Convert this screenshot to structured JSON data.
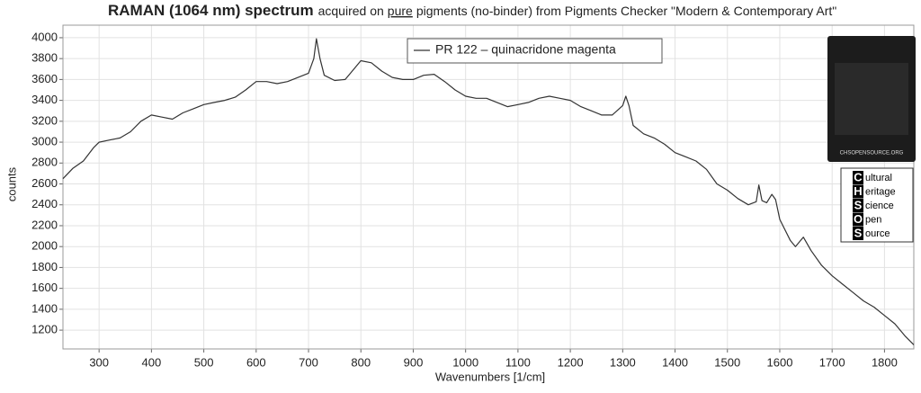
{
  "chart_data": {
    "type": "line",
    "title": "RAMAN (1064 nm) spectrum",
    "subtitle": [
      "acquired on",
      "pure",
      "pigments (no-binder) from Pigments Checker \"Modern & Contemporary Art\""
    ],
    "x_label": "Wavenumbers [1/cm]",
    "y_label": "counts",
    "xlim": [
      231,
      1856
    ],
    "ylim": [
      1020,
      4120
    ],
    "xticks": [
      300,
      400,
      500,
      600,
      700,
      800,
      900,
      1000,
      1100,
      1200,
      1300,
      1400,
      1500,
      1600,
      1700,
      1800
    ],
    "yticks": [
      1200,
      1400,
      1600,
      1800,
      2000,
      2200,
      2400,
      2600,
      2800,
      3000,
      3200,
      3400,
      3600,
      3800,
      4000
    ],
    "grid": true,
    "legend": "top",
    "x": [
      231,
      250,
      270,
      290,
      300,
      320,
      340,
      360,
      380,
      400,
      420,
      440,
      460,
      480,
      500,
      520,
      540,
      560,
      580,
      600,
      620,
      640,
      660,
      680,
      700,
      710,
      715,
      722,
      730,
      750,
      770,
      790,
      800,
      820,
      840,
      860,
      880,
      900,
      920,
      940,
      960,
      980,
      1000,
      1020,
      1040,
      1060,
      1080,
      1100,
      1120,
      1140,
      1160,
      1180,
      1200,
      1220,
      1240,
      1260,
      1280,
      1300,
      1306,
      1312,
      1320,
      1340,
      1360,
      1380,
      1400,
      1420,
      1440,
      1460,
      1480,
      1500,
      1520,
      1540,
      1555,
      1560,
      1566,
      1575,
      1585,
      1592,
      1600,
      1620,
      1630,
      1645,
      1660,
      1680,
      1700,
      1720,
      1740,
      1760,
      1780,
      1800,
      1820,
      1840,
      1856
    ],
    "series": [
      {
        "name": "PR 122 – quinacridone magenta",
        "color": "#333333",
        "values": [
          2650,
          2750,
          2820,
          2950,
          3000,
          3020,
          3040,
          3100,
          3200,
          3260,
          3240,
          3220,
          3280,
          3320,
          3360,
          3380,
          3400,
          3430,
          3500,
          3580,
          3580,
          3560,
          3580,
          3620,
          3660,
          3800,
          3990,
          3800,
          3640,
          3590,
          3600,
          3720,
          3780,
          3760,
          3680,
          3620,
          3600,
          3600,
          3640,
          3650,
          3580,
          3500,
          3440,
          3420,
          3420,
          3380,
          3340,
          3360,
          3380,
          3420,
          3440,
          3420,
          3400,
          3340,
          3300,
          3260,
          3260,
          3350,
          3440,
          3350,
          3160,
          3080,
          3040,
          2980,
          2900,
          2860,
          2820,
          2740,
          2600,
          2540,
          2460,
          2400,
          2430,
          2590,
          2440,
          2420,
          2500,
          2450,
          2260,
          2060,
          2000,
          2090,
          1960,
          1820,
          1720,
          1640,
          1560,
          1480,
          1420,
          1340,
          1260,
          1140,
          1060
        ]
      }
    ],
    "logo": {
      "caption": "CHSOPENSOURCE.ORG",
      "letters": [
        "C",
        "H",
        "S",
        "O",
        "S"
      ],
      "words": [
        "ultural",
        "eritage",
        "cience",
        "pen",
        "ource"
      ]
    }
  }
}
